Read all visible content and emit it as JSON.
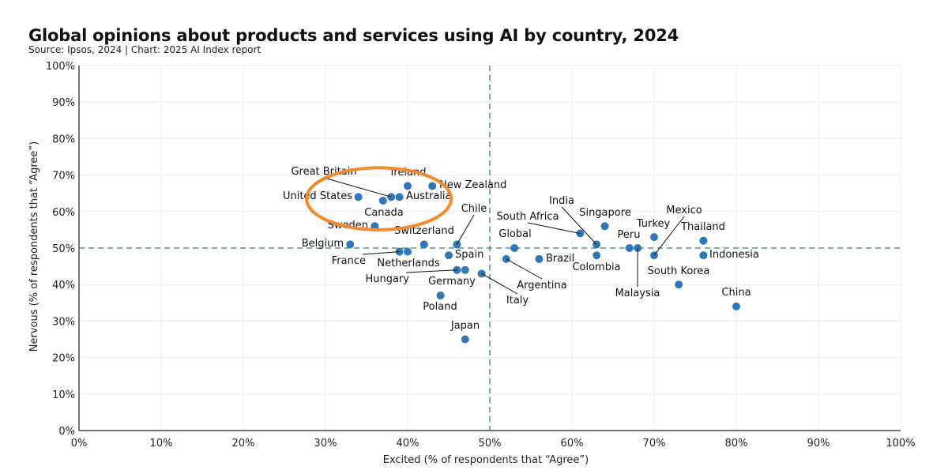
{
  "title": "Global opinions about products and services using AI by country, 2024",
  "subtitle": "Source: Ipsos, 2024 | Chart: 2025 AI Index report",
  "chart_data": {
    "type": "scatter",
    "title": "Global opinions about products and services using AI by country, 2024",
    "subtitle": "Source: Ipsos, 2024 | Chart: 2025 AI Index report",
    "xlabel": "Excited (% of respondents that “Agree”)",
    "ylabel": "Nervous (% of respondents that “Agree”)",
    "xlim": [
      0,
      100
    ],
    "ylim": [
      0,
      100
    ],
    "x_ticks": [
      "0%",
      "10%",
      "20%",
      "30%",
      "40%",
      "50%",
      "60%",
      "70%",
      "80%",
      "90%",
      "100%"
    ],
    "y_ticks": [
      "0%",
      "10%",
      "20%",
      "30%",
      "40%",
      "50%",
      "60%",
      "70%",
      "80%",
      "90%",
      "100%"
    ],
    "grid": true,
    "reference_lines": {
      "x": 50,
      "y": 50,
      "style": "dashed",
      "color": "#3a7d78"
    },
    "point_color": "#2f78b7",
    "highlight": {
      "shape": "ellipse",
      "color": "#f28a2e",
      "center": [
        36.5,
        63.5
      ],
      "radius": [
        8.8,
        8.5
      ]
    },
    "points": [
      {
        "label": "Great Britain",
        "x": 38,
        "y": 64
      },
      {
        "label": "Ireland",
        "x": 40,
        "y": 67
      },
      {
        "label": "New Zealand",
        "x": 43,
        "y": 67
      },
      {
        "label": "United States",
        "x": 34,
        "y": 64
      },
      {
        "label": "Australia",
        "x": 39,
        "y": 64
      },
      {
        "label": "Canada",
        "x": 37,
        "y": 63
      },
      {
        "label": "Sweden",
        "x": 36,
        "y": 56
      },
      {
        "label": "Belgium",
        "x": 33,
        "y": 51
      },
      {
        "label": "Switzerland",
        "x": 42,
        "y": 51
      },
      {
        "label": "Chile",
        "x": 46,
        "y": 51
      },
      {
        "label": "France",
        "x": 39,
        "y": 49
      },
      {
        "label": "Netherlands",
        "x": 40,
        "y": 49
      },
      {
        "label": "Spain",
        "x": 45,
        "y": 48
      },
      {
        "label": "Hungary",
        "x": 46,
        "y": 44
      },
      {
        "label": "Germany",
        "x": 47,
        "y": 44
      },
      {
        "label": "Italy",
        "x": 49,
        "y": 43
      },
      {
        "label": "Poland",
        "x": 44,
        "y": 37
      },
      {
        "label": "Japan",
        "x": 47,
        "y": 25
      },
      {
        "label": "Global",
        "x": 53,
        "y": 50
      },
      {
        "label": "Argentina",
        "x": 52,
        "y": 47
      },
      {
        "label": "Brazil",
        "x": 56,
        "y": 47
      },
      {
        "label": "South Africa",
        "x": 61,
        "y": 54
      },
      {
        "label": "India",
        "x": 63,
        "y": 51
      },
      {
        "label": "Colombia",
        "x": 63,
        "y": 48
      },
      {
        "label": "Singapore",
        "x": 64,
        "y": 56
      },
      {
        "label": "Peru",
        "x": 67,
        "y": 50
      },
      {
        "label": "Malaysia",
        "x": 68,
        "y": 50
      },
      {
        "label": "Turkey",
        "x": 70,
        "y": 53
      },
      {
        "label": "Mexico",
        "x": 70,
        "y": 48
      },
      {
        "label": "Thailand",
        "x": 76,
        "y": 52
      },
      {
        "label": "Indonesia",
        "x": 76,
        "y": 48
      },
      {
        "label": "South Korea",
        "x": 73,
        "y": 40
      },
      {
        "label": "China",
        "x": 80,
        "y": 34
      }
    ]
  }
}
